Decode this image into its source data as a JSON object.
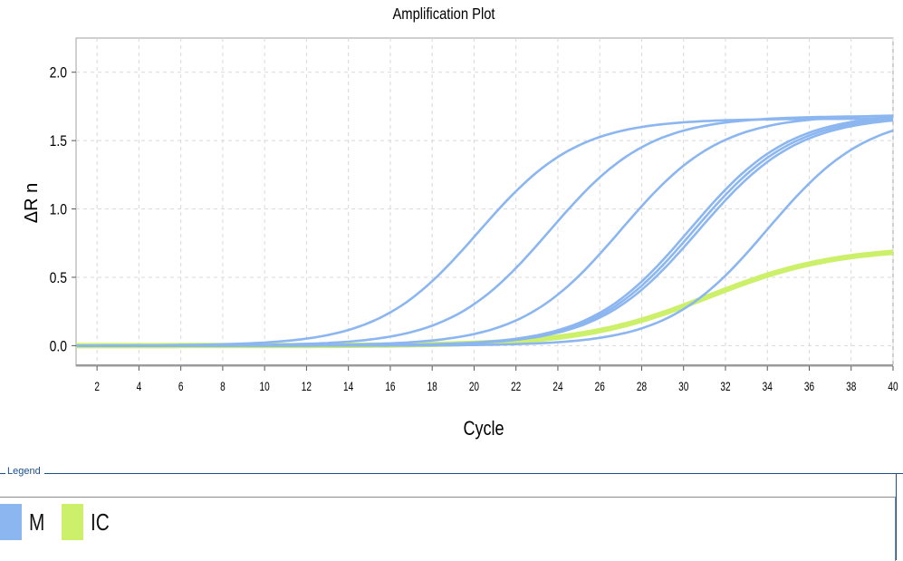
{
  "chart_data": {
    "type": "line",
    "title": "Amplification Plot",
    "xlabel": "Cycle",
    "ylabel": "ΔR n",
    "xlim": [
      1,
      40
    ],
    "ylim": [
      -0.15,
      2.25
    ],
    "xticks": [
      2,
      4,
      6,
      8,
      10,
      12,
      14,
      16,
      18,
      20,
      22,
      24,
      26,
      28,
      30,
      32,
      34,
      36,
      38,
      40
    ],
    "yticks": [
      0.0,
      0.5,
      1.0,
      1.5,
      2.0
    ],
    "ytick_labels": [
      "0.0",
      "0.5",
      "1.0",
      "1.5",
      "2.0"
    ],
    "grid": true,
    "legend_position": "bottom",
    "series": [
      {
        "name": "M",
        "color": "#8cb6f0",
        "plateau": 1.66,
        "midpoint": 20.2,
        "slope": 0.42
      },
      {
        "name": "M",
        "color": "#8cb6f0",
        "plateau": 1.68,
        "midpoint": 23.6,
        "slope": 0.42
      },
      {
        "name": "M",
        "color": "#8cb6f0",
        "plateau": 1.69,
        "midpoint": 27.0,
        "slope": 0.42
      },
      {
        "name": "M",
        "color": "#8cb6f0",
        "plateau": 1.7,
        "midpoint": 30.3,
        "slope": 0.42
      },
      {
        "name": "M",
        "color": "#8cb6f0",
        "plateau": 1.69,
        "midpoint": 30.5,
        "slope": 0.42
      },
      {
        "name": "M",
        "color": "#8cb6f0",
        "plateau": 1.68,
        "midpoint": 30.7,
        "slope": 0.42
      },
      {
        "name": "M",
        "color": "#8cb6f0",
        "plateau": 1.7,
        "midpoint": 34.0,
        "slope": 0.42
      },
      {
        "name": "IC",
        "color": "#ccf06a",
        "plateau": 0.72,
        "midpoint": 31.2,
        "slope": 0.33
      }
    ]
  },
  "legend": {
    "title": "Legend",
    "items": [
      {
        "label": "M",
        "color": "#8cb6f0"
      },
      {
        "label": "IC",
        "color": "#ccf06a"
      }
    ]
  }
}
